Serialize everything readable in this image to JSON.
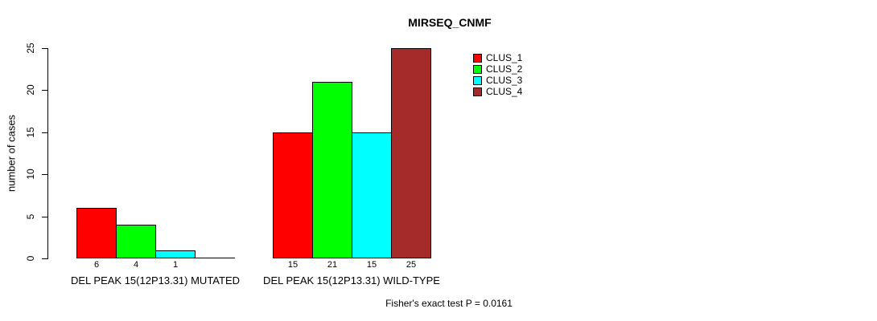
{
  "chart_data": {
    "type": "bar",
    "title": "MIRSEQ_CNMF",
    "ylabel": "number of cases",
    "xlabel": "",
    "ylim": [
      0,
      25
    ],
    "yticks": [
      0,
      5,
      10,
      15,
      20,
      25
    ],
    "grid": false,
    "legend_position": "top-right",
    "categories": [
      "DEL PEAK 15(12P13.31) MUTATED",
      "DEL PEAK 15(12P13.31) WILD-TYPE"
    ],
    "series": [
      {
        "name": "CLUS_1",
        "color": "#ff0000",
        "values": [
          6,
          15
        ]
      },
      {
        "name": "CLUS_2",
        "color": "#00ff00",
        "values": [
          4,
          21
        ]
      },
      {
        "name": "CLUS_3",
        "color": "#00ffff",
        "values": [
          1,
          15
        ]
      },
      {
        "name": "CLUS_4",
        "color": "#a52a2a",
        "values": [
          0,
          25
        ]
      }
    ],
    "bar_value_labels": [
      [
        "6",
        "4",
        "1",
        ""
      ],
      [
        "15",
        "21",
        "15",
        "25"
      ]
    ],
    "annotation": "Fisher's exact test P = 0.0161"
  }
}
